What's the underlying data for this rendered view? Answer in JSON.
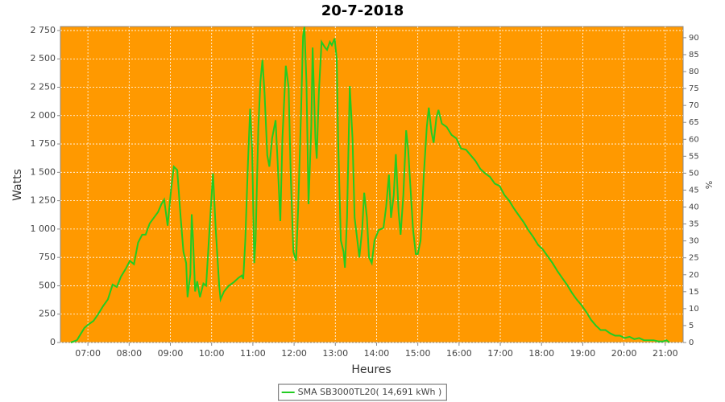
{
  "chart_data": {
    "type": "line",
    "title": "20-7-2018",
    "xlabel": "Heures",
    "ylabel": "Watts",
    "y2label": "%",
    "background": "#ff9900",
    "grid": true,
    "legend": "bottom",
    "xlim": [
      "06:20",
      "21:26"
    ],
    "xticks": [
      "07:00",
      "08:00",
      "09:00",
      "10:00",
      "11:00",
      "12:00",
      "13:00",
      "14:00",
      "15:00",
      "16:00",
      "17:00",
      "18:00",
      "19:00",
      "20:00",
      "21:00"
    ],
    "ylim": [
      0,
      2785
    ],
    "yticks": [
      0,
      250,
      500,
      750,
      {
        "value": 1000,
        "label": "1 000"
      },
      {
        "value": 1250,
        "label": "1 250"
      },
      {
        "value": 1500,
        "label": "1 500"
      },
      {
        "value": 1750,
        "label": "1 750"
      },
      {
        "value": 2000,
        "label": "2 000"
      },
      {
        "value": 2250,
        "label": "2 250"
      },
      {
        "value": 2500,
        "label": "2 500"
      },
      {
        "value": 2750,
        "label": "2 750"
      }
    ],
    "y2lim": [
      0,
      93.3
    ],
    "y2ticks": [
      0,
      5,
      10,
      15,
      20,
      25,
      30,
      35,
      40,
      45,
      50,
      55,
      60,
      65,
      70,
      75,
      80,
      85,
      90
    ],
    "x": [
      "06:35",
      "06:44",
      "06:50",
      "06:55",
      "07:01",
      "07:08",
      "07:15",
      "07:22",
      "07:29",
      "07:36",
      "07:42",
      "07:48",
      "07:55",
      "08:01",
      "08:07",
      "08:13",
      "08:19",
      "08:24",
      "08:30",
      "08:36",
      "08:42",
      "08:47",
      "08:51",
      "08:56",
      "09:01",
      "09:05",
      "09:10",
      "09:15",
      "09:19",
      "09:23",
      "09:25",
      "09:29",
      "09:31",
      "09:33",
      "09:36",
      "09:39",
      "09:43",
      "09:48",
      "09:52",
      "09:57",
      "10:02",
      "10:06",
      "10:11",
      "10:13",
      "10:18",
      "10:25",
      "10:32",
      "10:39",
      "10:44",
      "10:46",
      "10:49",
      "10:53",
      "10:56",
      "10:59",
      "11:02",
      "11:04",
      "11:08",
      "11:11",
      "11:14",
      "11:17",
      "11:21",
      "11:24",
      "11:28",
      "11:33",
      "11:36",
      "11:40",
      "11:43",
      "11:48",
      "11:52",
      "11:55",
      "11:59",
      "12:03",
      "12:06",
      "12:10",
      "12:13",
      "12:15",
      "12:18",
      "12:21",
      "12:25",
      "12:27",
      "12:31",
      "12:33",
      "12:36",
      "12:40",
      "12:45",
      "12:48",
      "12:52",
      "12:55",
      "12:59",
      "13:02",
      "13:04",
      "13:08",
      "13:12",
      "13:14",
      "13:17",
      "13:21",
      "13:25",
      "13:28",
      "13:32",
      "13:35",
      "13:39",
      "13:42",
      "13:46",
      "13:49",
      "13:53",
      "13:57",
      "14:03",
      "14:10",
      "14:14",
      "14:18",
      "14:21",
      "14:25",
      "14:28",
      "14:32",
      "14:35",
      "14:39",
      "14:43",
      "14:46",
      "14:50",
      "14:53",
      "14:57",
      "15:00",
      "15:04",
      "15:09",
      "15:13",
      "15:16",
      "15:20",
      "15:23",
      "15:27",
      "15:30",
      "15:35",
      "15:42",
      "15:49",
      "15:56",
      "16:03",
      "16:10",
      "16:17",
      "16:24",
      "16:31",
      "16:38",
      "16:45",
      "16:52",
      "16:59",
      "17:06",
      "17:13",
      "17:20",
      "17:27",
      "17:34",
      "17:41",
      "17:48",
      "17:55",
      "18:02",
      "18:09",
      "18:16",
      "18:23",
      "18:30",
      "18:37",
      "18:44",
      "18:51",
      "18:58",
      "19:05",
      "19:12",
      "19:19",
      "19:26",
      "19:33",
      "19:40",
      "19:47",
      "19:54",
      "20:01",
      "20:08",
      "20:15",
      "20:22",
      "20:29",
      "20:36",
      "20:43",
      "20:50",
      "20:57",
      "21:02",
      "21:06"
    ],
    "series": [
      {
        "name": "SMA SB3000TL20( 14,691 kWh )",
        "color": "#22cc22",
        "values": [
          0,
          20,
          80,
          130,
          160,
          190,
          250,
          320,
          380,
          510,
          490,
          580,
          650,
          720,
          690,
          880,
          950,
          950,
          1050,
          1100,
          1150,
          1220,
          1260,
          1030,
          1350,
          1550,
          1520,
          1100,
          800,
          700,
          400,
          600,
          1130,
          900,
          450,
          540,
          400,
          520,
          500,
          1000,
          1490,
          1000,
          500,
          380,
          450,
          500,
          530,
          570,
          590,
          560,
          900,
          1600,
          2060,
          1700,
          700,
          900,
          1900,
          2300,
          2490,
          2200,
          1650,
          1550,
          1800,
          1960,
          1600,
          1070,
          1800,
          2440,
          2250,
          1500,
          800,
          720,
          1200,
          2000,
          2700,
          2780,
          2300,
          1220,
          1900,
          2600,
          1800,
          1620,
          2200,
          2650,
          2600,
          2580,
          2650,
          2620,
          2680,
          2500,
          1800,
          900,
          800,
          660,
          1100,
          2260,
          1800,
          1100,
          900,
          750,
          1000,
          1320,
          1100,
          750,
          700,
          900,
          990,
          1010,
          1200,
          1480,
          1100,
          1300,
          1660,
          1150,
          950,
          1300,
          1870,
          1700,
          1300,
          1000,
          780,
          780,
          900,
          1500,
          1900,
          2070,
          1850,
          1760,
          1980,
          2050,
          1930,
          1900,
          1830,
          1800,
          1710,
          1700,
          1650,
          1600,
          1530,
          1490,
          1460,
          1400,
          1380,
          1300,
          1250,
          1180,
          1120,
          1060,
          990,
          930,
          860,
          820,
          760,
          700,
          630,
          570,
          510,
          440,
          380,
          330,
          270,
          200,
          150,
          110,
          110,
          80,
          60,
          60,
          40,
          50,
          30,
          40,
          20,
          20,
          20,
          10,
          10,
          20,
          0
        ]
      }
    ]
  }
}
